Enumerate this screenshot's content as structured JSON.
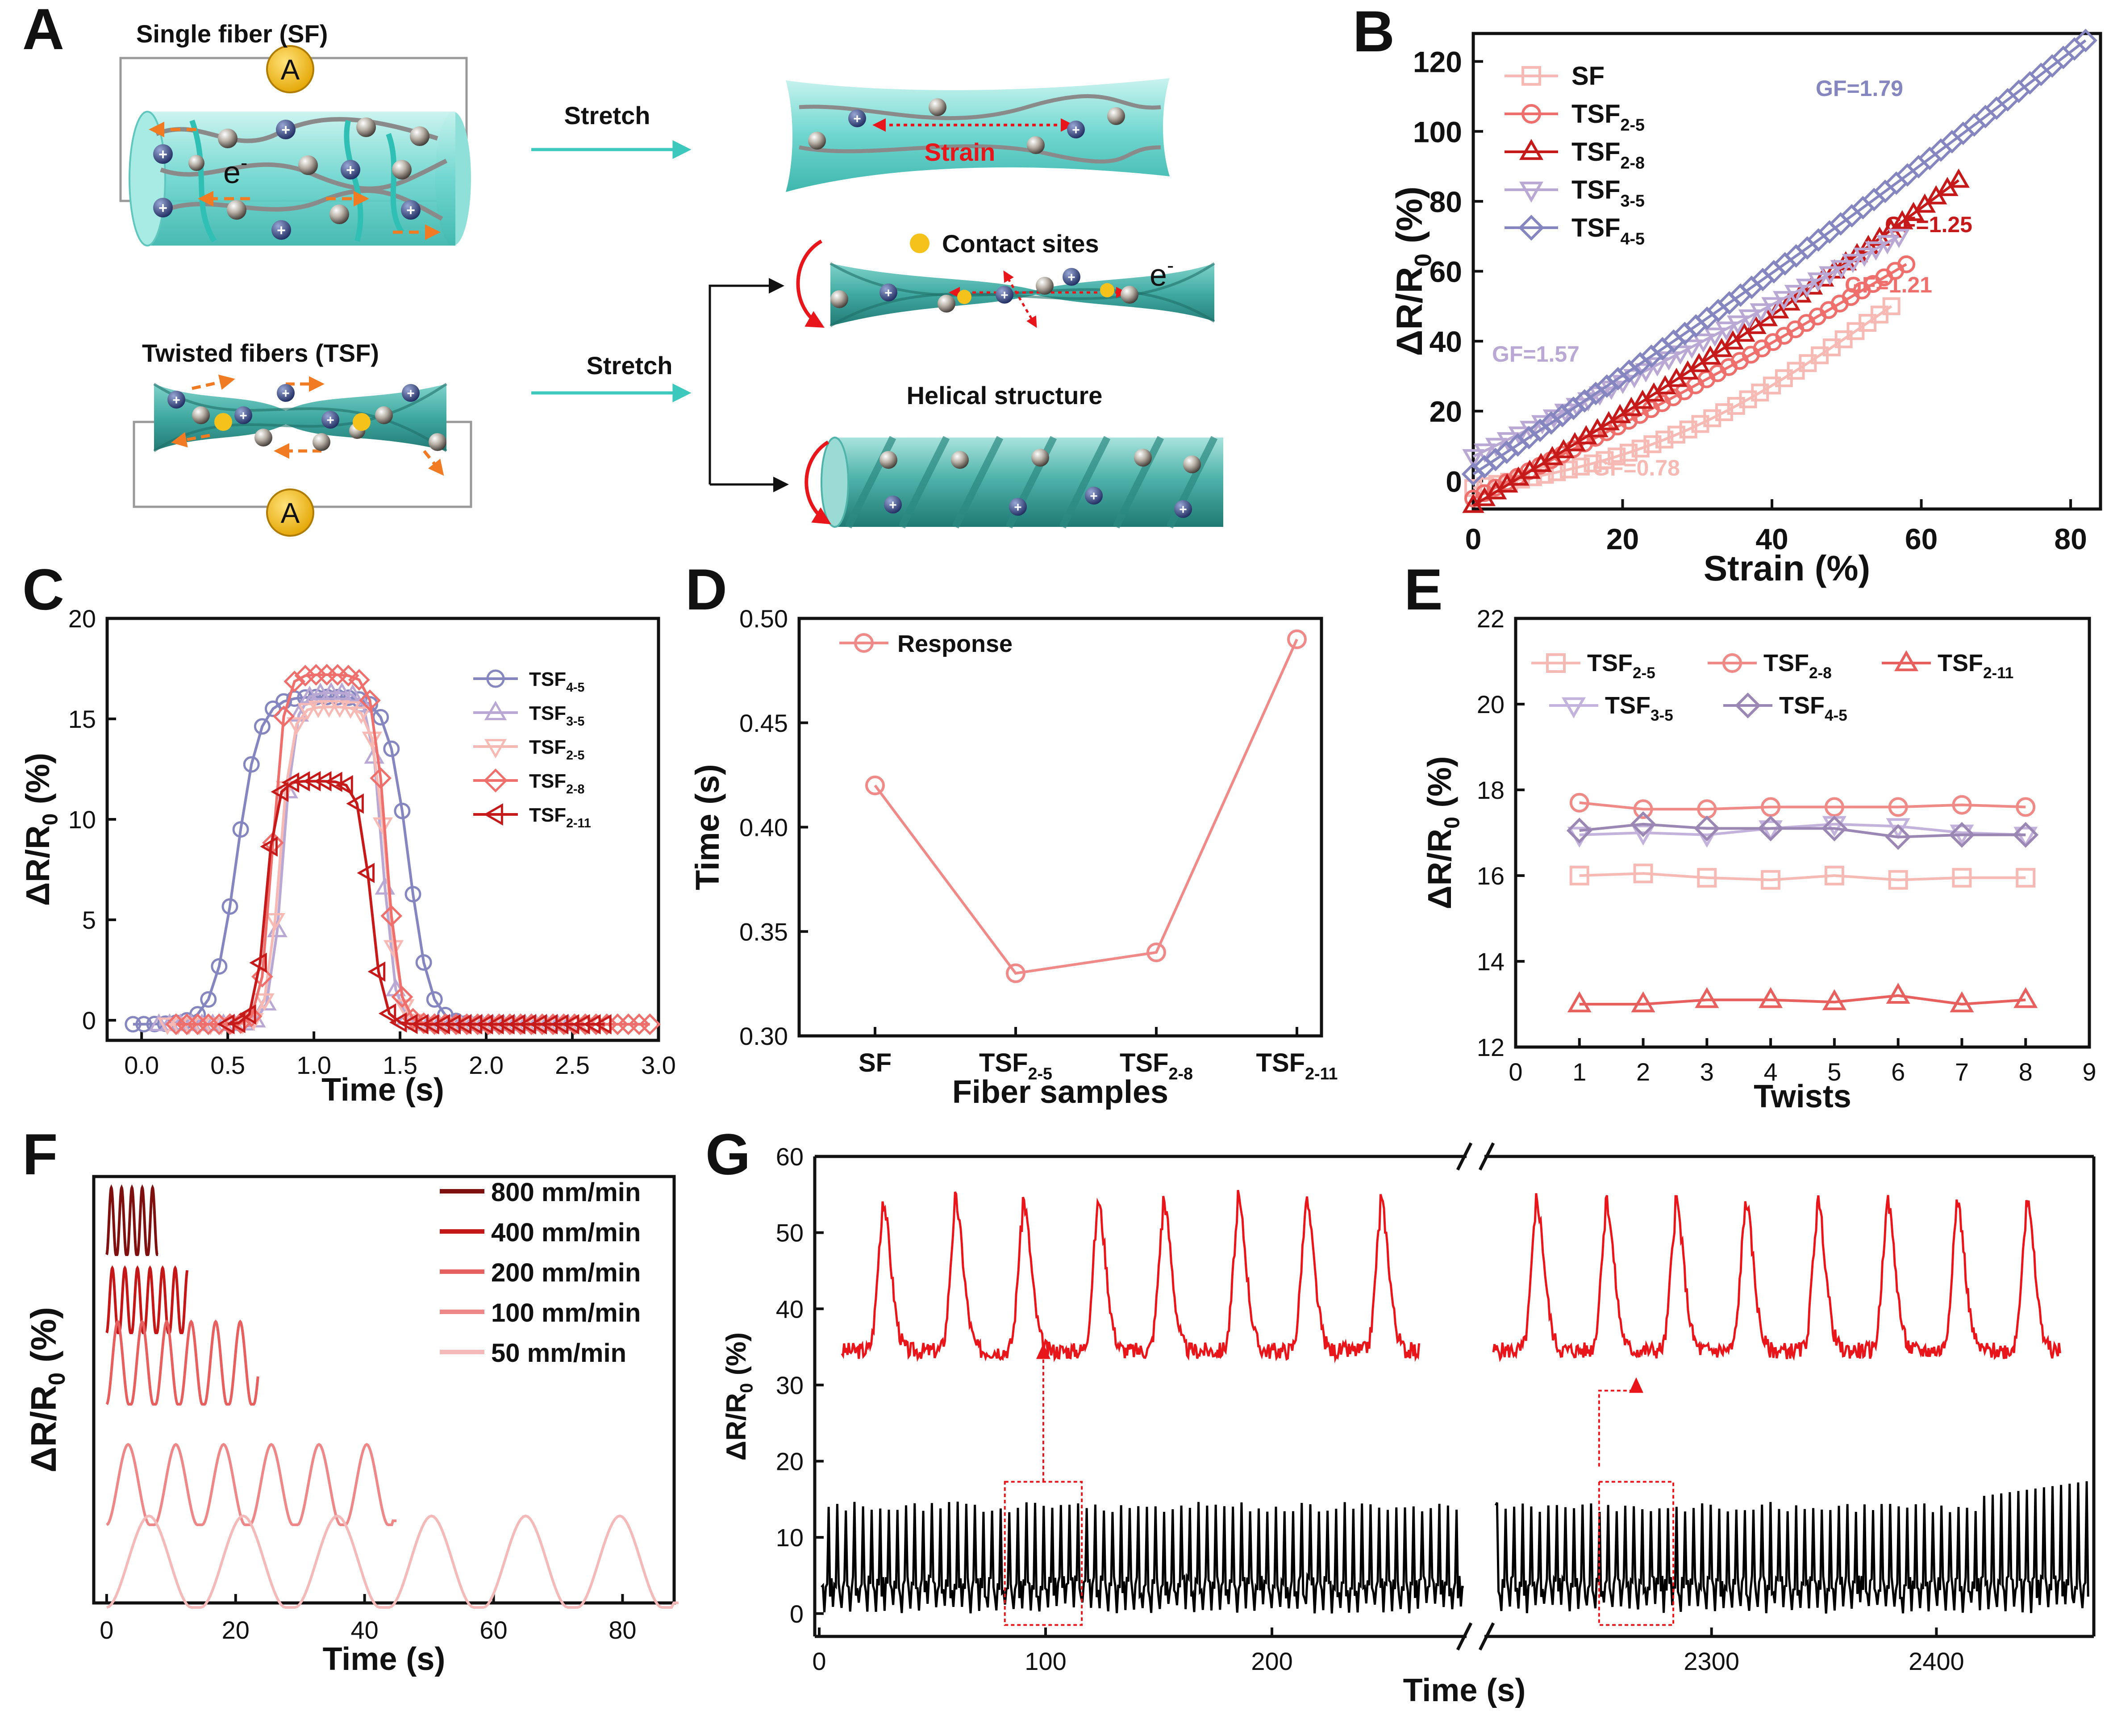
{
  "panel_letters": {
    "a": "A",
    "b": "B",
    "c": "C",
    "d": "D",
    "e": "E",
    "f": "F",
    "g": "G"
  },
  "schematic": {
    "single_fiber_label": "Single fiber (SF)",
    "twisted_fibers_label": "Twisted fibers (TSF)",
    "ammeter_symbol": "A",
    "stretch_label": "Stretch",
    "strain_label": "Strain",
    "contact_sites_label": "Contact sites",
    "helical_structure_label": "Helical structure",
    "electron_symbol": "e",
    "electron_sup": "-",
    "ion_symbol": "+"
  },
  "chart_data": [
    {
      "id": "B",
      "type": "scatter",
      "xlabel": "Strain (%)",
      "ylabel": "ΔR/R0 (%)",
      "xlim": [
        0,
        84
      ],
      "ylim": [
        -8,
        128
      ],
      "xticks": [
        "0",
        "20",
        "40",
        "60",
        "80"
      ],
      "yticks": [
        "0",
        "20",
        "40",
        "60",
        "80",
        "100",
        "120"
      ],
      "series": [
        {
          "name": "SF",
          "sub": "",
          "color": "#f7b9b4",
          "marker": "square",
          "start": [
            0,
            -2
          ],
          "end": [
            56,
            50
          ],
          "bend": 10,
          "count": 36,
          "gf": "GF=0.78"
        },
        {
          "name": "TSF",
          "sub": "2-5",
          "color": "#ef6f6c",
          "marker": "circle",
          "start": [
            0,
            -5
          ],
          "end": [
            58,
            62
          ],
          "bend": 2,
          "count": 40,
          "gf": "GF=1.21"
        },
        {
          "name": "TSF",
          "sub": "2-8",
          "color": "#c61a1a",
          "marker": "triangle-up",
          "start": [
            0,
            -7
          ],
          "end": [
            65,
            86
          ],
          "bend": 3,
          "count": 44,
          "gf": "GF=1.25"
        },
        {
          "name": "TSF",
          "sub": "3-5",
          "color": "#b9a8d4",
          "marker": "triangle-down",
          "start": [
            0,
            7
          ],
          "end": [
            57,
            70
          ],
          "bend": 1,
          "count": 38,
          "gf": "GF=1.57"
        },
        {
          "name": "TSF",
          "sub": "4-5",
          "color": "#8585c0",
          "marker": "diamond",
          "start": [
            0,
            2
          ],
          "end": [
            82,
            126
          ],
          "bend": 3,
          "count": 56,
          "gf": "GF=1.79"
        }
      ]
    },
    {
      "id": "C",
      "type": "line",
      "xlabel": "Time (s)",
      "ylabel": "ΔR/R0 (%)",
      "xlim": [
        -0.2,
        3.0
      ],
      "ylim": [
        -1,
        20
      ],
      "xticks": [
        "0.0",
        "0.5",
        "1.0",
        "1.5",
        "2.0",
        "2.5",
        "3.0"
      ],
      "yticks": [
        "0",
        "5",
        "10",
        "15",
        "20"
      ],
      "series": [
        {
          "name": "TSF",
          "sub": "4-5",
          "color": "#8585c0",
          "marker": "circle",
          "rise": [
            0.55,
            0.26
          ],
          "fall": [
            1.55,
            0.24
          ],
          "peak": 16.3,
          "xmin": -0.05,
          "xmax": 2.0
        },
        {
          "name": "TSF",
          "sub": "3-5",
          "color": "#b9a8d4",
          "marker": "triangle-up",
          "rise": [
            0.82,
            0.14
          ],
          "fall": [
            1.4,
            0.14
          ],
          "peak": 16.5,
          "xmin": 0.1,
          "xmax": 2.5
        },
        {
          "name": "TSF",
          "sub": "2-5",
          "color": "#f7b9b4",
          "marker": "triangle-down",
          "rise": [
            0.8,
            0.14
          ],
          "fall": [
            1.42,
            0.15
          ],
          "peak": 15.8,
          "xmin": 0.15,
          "xmax": 2.6
        },
        {
          "name": "TSF",
          "sub": "2-8",
          "color": "#ef6f6c",
          "marker": "diamond",
          "rise": [
            0.76,
            0.13
          ],
          "fall": [
            1.42,
            0.15
          ],
          "peak": 17.4,
          "xmin": 0.2,
          "xmax": 2.98
        },
        {
          "name": "TSF",
          "sub": "2-11",
          "color": "#c61a1a",
          "marker": "triangle-left",
          "rise": [
            0.72,
            0.12
          ],
          "fall": [
            1.33,
            0.14
          ],
          "peak": 12.1,
          "xmin": 0.5,
          "xmax": 2.72
        }
      ]
    },
    {
      "id": "D",
      "type": "line",
      "xlabel": "Fiber samples",
      "ylabel": "Time (s)",
      "ylim": [
        0.3,
        0.5
      ],
      "yticks": [
        "0.30",
        "0.35",
        "0.40",
        "0.45",
        "0.50"
      ],
      "categories": [
        "SF",
        "TSF2-5",
        "TSF2-8",
        "TSF2-11"
      ],
      "category_labels": [
        {
          "main": "SF",
          "sub": ""
        },
        {
          "main": "TSF",
          "sub": "2-5"
        },
        {
          "main": "TSF",
          "sub": "2-8"
        },
        {
          "main": "TSF",
          "sub": "2-11"
        }
      ],
      "series": [
        {
          "name": "Response",
          "color": "#f08a88",
          "marker": "circle",
          "values": [
            0.42,
            0.33,
            0.34,
            0.49
          ]
        }
      ]
    },
    {
      "id": "E",
      "type": "line",
      "xlabel": "Twists",
      "ylabel": "ΔR/R0 (%)",
      "xlim": [
        0,
        9
      ],
      "ylim": [
        12,
        22
      ],
      "xticks": [
        "0",
        "1",
        "2",
        "3",
        "4",
        "5",
        "6",
        "7",
        "8",
        "9"
      ],
      "yticks": [
        "12",
        "14",
        "16",
        "18",
        "20",
        "22"
      ],
      "x": [
        1,
        2,
        3,
        4,
        5,
        6,
        7,
        8
      ],
      "series": [
        {
          "name": "TSF",
          "sub": "2-5",
          "color": "#f7b9b4",
          "marker": "square",
          "values": [
            16.0,
            16.05,
            15.95,
            15.9,
            16.0,
            15.9,
            15.95,
            15.95
          ]
        },
        {
          "name": "TSF",
          "sub": "2-8",
          "color": "#ef8a87",
          "marker": "circle",
          "values": [
            17.7,
            17.55,
            17.55,
            17.6,
            17.6,
            17.6,
            17.65,
            17.6
          ]
        },
        {
          "name": "TSF",
          "sub": "2-11",
          "color": "#e8605e",
          "marker": "triangle-up",
          "values": [
            13.0,
            13.0,
            13.1,
            13.1,
            13.05,
            13.2,
            13.0,
            13.1
          ]
        },
        {
          "name": "TSF",
          "sub": "3-5",
          "color": "#c3b2db",
          "marker": "triangle-down",
          "values": [
            16.95,
            17.0,
            16.95,
            17.1,
            17.2,
            17.15,
            17.0,
            16.95
          ]
        },
        {
          "name": "TSF",
          "sub": "4-5",
          "color": "#9b87b3",
          "marker": "diamond",
          "values": [
            17.05,
            17.2,
            17.1,
            17.1,
            17.1,
            16.9,
            16.95,
            16.95
          ]
        }
      ]
    },
    {
      "id": "F",
      "type": "line",
      "xlabel": "Time (s)",
      "ylabel": "ΔR/R0 (%)",
      "xlim": [
        -2,
        88
      ],
      "xticks": [
        "0",
        "20",
        "40",
        "60",
        "80"
      ],
      "series": [
        {
          "name": "800 mm/min",
          "color": "#7e1010",
          "period": 1.6,
          "count": 6,
          "xmax": 8.0
        },
        {
          "name": "400 mm/min",
          "color": "#c41818",
          "period": 1.95,
          "count": 7,
          "xmax": 12.5
        },
        {
          "name": "200 mm/min",
          "color": "#e76060",
          "period": 3.8,
          "count": 7,
          "xmax": 23.5
        },
        {
          "name": "100 mm/min",
          "color": "#ee8787",
          "period": 7.4,
          "count": 6,
          "xmax": 45.0
        },
        {
          "name": "50 mm/min",
          "color": "#f4b9b9",
          "period": 14.6,
          "count": 6,
          "xmax": 89.0
        }
      ]
    },
    {
      "id": "G",
      "type": "line",
      "xlabel": "Time (s)",
      "ylabel": "ΔR/R0 (%)",
      "ylim": [
        -3,
        60
      ],
      "yticks": [
        "0",
        "10",
        "20",
        "30",
        "40",
        "50",
        "60"
      ],
      "xticks_left": [
        "0",
        "100",
        "200"
      ],
      "xticks_right": [
        "2300",
        "2400"
      ],
      "segments": [
        [
          0,
          285
        ],
        [
          2200,
          2470
        ]
      ],
      "zoom_windows": [
        [
          82,
          116
        ],
        [
          2250,
          2283
        ]
      ],
      "long_trace": {
        "color": "#000000",
        "period": 3.8,
        "peak": 14
      },
      "zoomed_trace": {
        "color": "#e8161b",
        "peaks_left": [
          28,
          60,
          90,
          123,
          152,
          185,
          215,
          248
        ],
        "peaks_right": [
          2222,
          2253,
          2284,
          2315,
          2347,
          2378,
          2409,
          2440
        ],
        "peak": 51,
        "baseline": 34
      }
    }
  ]
}
